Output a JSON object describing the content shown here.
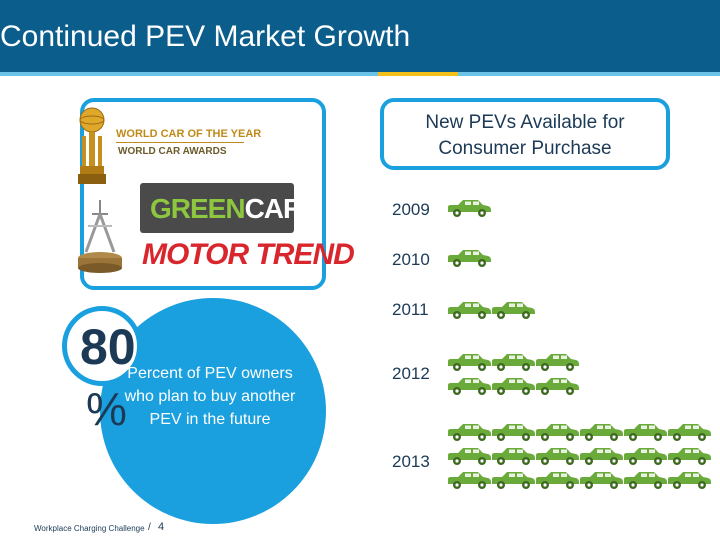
{
  "header": {
    "title": "Continued PEV Market Growth"
  },
  "awards": {
    "world_car_line1": "WORLD CAR OF THE YEAR",
    "world_car_line2": "WORLD CAR AWARDS",
    "greencar_part1": "GREEN",
    "greencar_part2": "CAR",
    "motortrend": "MOTOR TREND"
  },
  "stat": {
    "value": "80",
    "unit": "%",
    "description": "Percent of PEV owners who plan to buy another PEV in the future"
  },
  "pevs": {
    "heading": "New PEVs Available for Consumer Purchase",
    "years": [
      {
        "year": "2009",
        "cars": 1
      },
      {
        "year": "2010",
        "cars": 1
      },
      {
        "year": "2011",
        "cars": 2
      },
      {
        "year": "2012",
        "cars": 6
      },
      {
        "year": "2013",
        "cars": 18
      }
    ],
    "car_color": "#6aaa3a"
  },
  "footer": {
    "label": "Workplace Charging Challenge",
    "separator": "/",
    "page": "4"
  }
}
